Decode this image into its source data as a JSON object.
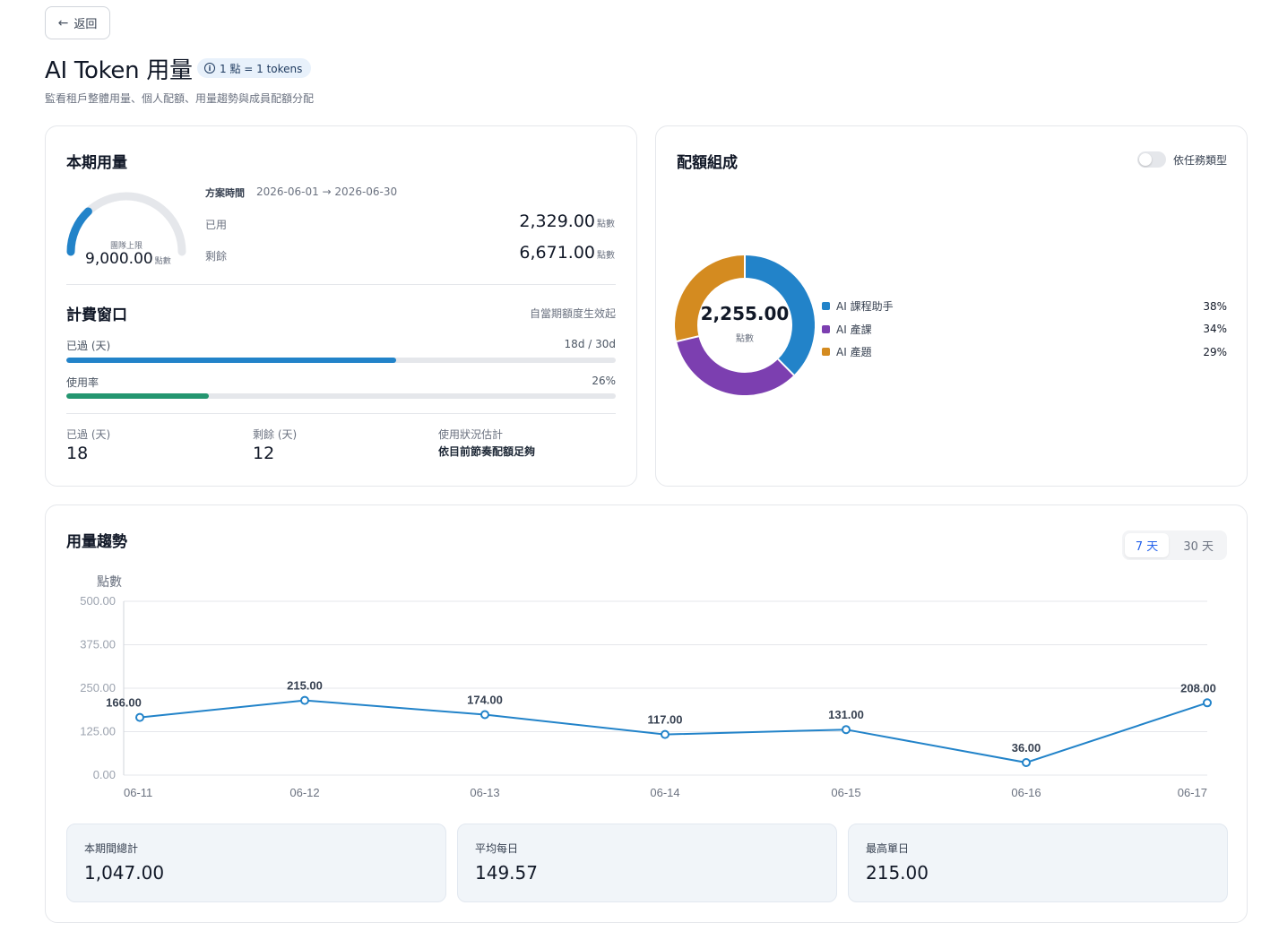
{
  "header": {
    "back_label": "返回",
    "title": "AI Token 用量",
    "rate_badge": "1 點 = 1 tokens",
    "subtitle": "監看租戶整體用量、個人配額、用量趨勢與成員配額分配"
  },
  "usage": {
    "title": "本期用量",
    "gauge_label": "團隊上限",
    "gauge_value": "9,000.00",
    "gauge_unit": "點數",
    "gauge_used_fraction": 0.2588,
    "plan_label": "方案時間",
    "plan_range": "2026-06-01 → 2026-06-30",
    "used_label": "已用",
    "used_value": "2,329.00",
    "remaining_label": "剩餘",
    "remaining_value": "6,671.00",
    "unit": "點數"
  },
  "billing": {
    "title": "計費窗口",
    "note": "自當期額度生效起",
    "elapsed_label": "已過 (天)",
    "elapsed_ratio": "18d / 30d",
    "elapsed_fraction": 0.6,
    "usage_rate_label": "使用率",
    "usage_rate_value": "26%",
    "usage_rate_fraction": 0.26,
    "colors": {
      "elapsed": "#2283c9",
      "usage": "#249670"
    },
    "summary": {
      "elapsed_label": "已過 (天)",
      "elapsed_value": "18",
      "remaining_label": "剩餘 (天)",
      "remaining_value": "12",
      "estimate_label": "使用狀況估計",
      "estimate_value": "依目前節奏配額足夠"
    }
  },
  "composition": {
    "title": "配額組成",
    "toggle_label": "依任務類型",
    "toggle_on": false,
    "center_value": "2,255.00",
    "center_unit": "點數",
    "items": [
      {
        "name": "AI 課程助手",
        "pct": "38%",
        "fraction": 0.38,
        "color": "#2283c9"
      },
      {
        "name": "AI 產課",
        "pct": "34%",
        "fraction": 0.34,
        "color": "#7c3fb0"
      },
      {
        "name": "AI 產題",
        "pct": "29%",
        "fraction": 0.29,
        "color": "#d48b20"
      }
    ]
  },
  "trend": {
    "title": "用量趨勢",
    "ranges": [
      "7 天",
      "30 天"
    ],
    "active_range": "7 天",
    "chart_data": {
      "type": "line",
      "ylabel": "點數",
      "xlabel": "",
      "x": [
        "06-11",
        "06-12",
        "06-13",
        "06-14",
        "06-15",
        "06-16",
        "06-17"
      ],
      "values": [
        166.0,
        215.0,
        174.0,
        117.0,
        131.0,
        36.0,
        208.0
      ],
      "value_labels": [
        "166.00",
        "215.00",
        "174.00",
        "117.00",
        "131.00",
        "36.00",
        "208.00"
      ],
      "yticks": [
        "0.00",
        "125.00",
        "250.00",
        "375.00",
        "500.00"
      ],
      "ylim": [
        0,
        500
      ],
      "grid": true,
      "color": "#2283c9"
    },
    "kpis": [
      {
        "label": "本期間總計",
        "value": "1,047.00"
      },
      {
        "label": "平均每日",
        "value": "149.57"
      },
      {
        "label": "最高單日",
        "value": "215.00"
      }
    ]
  }
}
